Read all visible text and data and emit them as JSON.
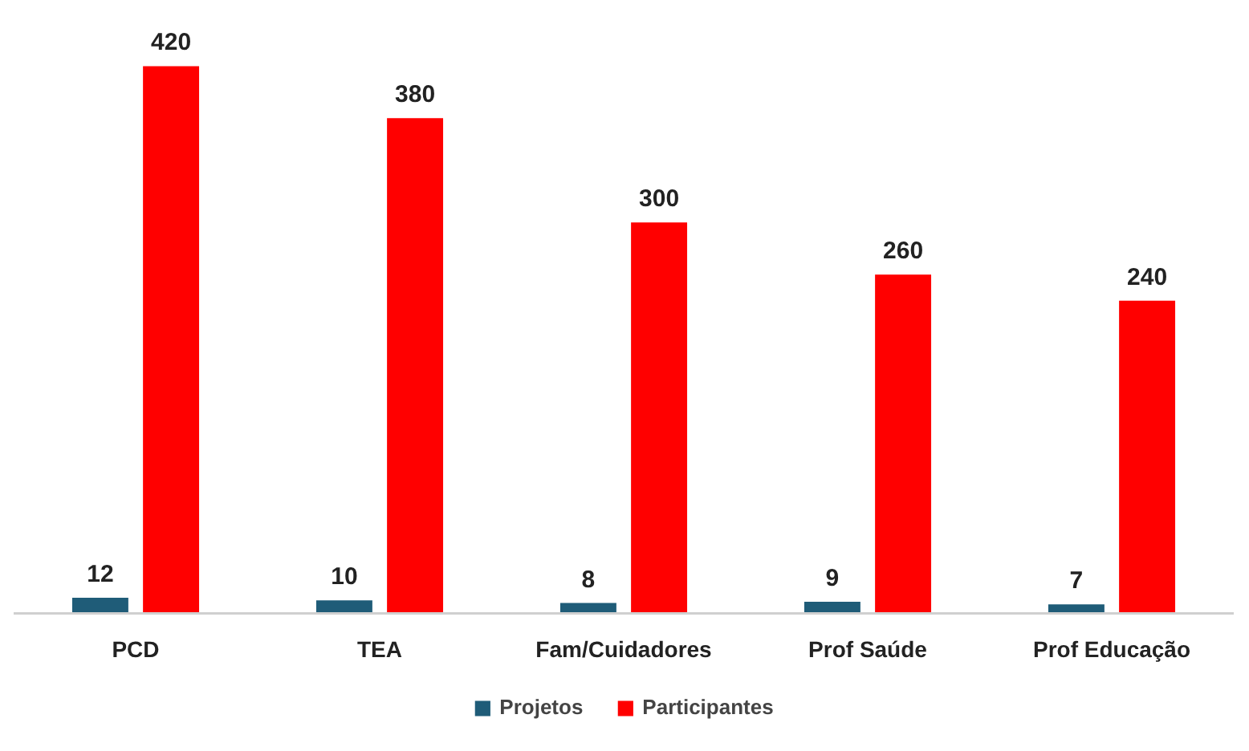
{
  "chart_data": {
    "type": "bar",
    "categories": [
      "PCD",
      "TEA",
      "Fam/Cuidadores",
      "Prof Saúde",
      "Prof Educação"
    ],
    "series": [
      {
        "name": "Projetos",
        "color": "#1f5c78",
        "values": [
          12,
          10,
          8,
          9,
          7
        ]
      },
      {
        "name": "Participantes",
        "color": "#ff0000",
        "values": [
          420,
          380,
          300,
          260,
          240
        ]
      }
    ],
    "data_labels": true,
    "grid": false,
    "legend": "bottom",
    "tick_labels": "x"
  }
}
